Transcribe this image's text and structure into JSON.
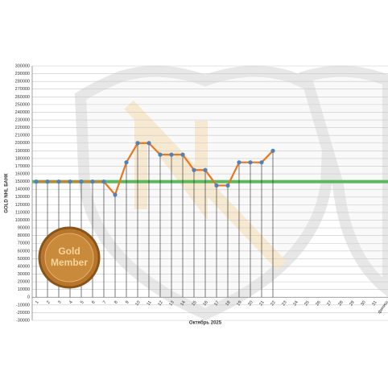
{
  "chart_data": {
    "type": "line",
    "y_label": "GOLD NHL БАНК",
    "x_label": "Октябрь 2025",
    "badge_text": [
      "Gold",
      "Member"
    ],
    "categories": [
      "1",
      "2",
      "3",
      "4",
      "5",
      "6",
      "7",
      "8",
      "9",
      "10",
      "11",
      "12",
      "13",
      "14",
      "15",
      "16",
      "17",
      "18",
      "19",
      "20",
      "21",
      "22",
      "23",
      "24",
      "25",
      "26",
      "27",
      "28",
      "29",
      "30",
      "31",
      "финиш"
    ],
    "series": [
      {
        "name": "GOLD NHL БАНК",
        "color": "#e8761e",
        "marker_color": "#4f81bd",
        "values": [
          150000,
          150000,
          150000,
          150000,
          150000,
          150000,
          150000,
          133000,
          175000,
          200000,
          200000,
          185000,
          185000,
          185000,
          165000,
          165000,
          145000,
          145000,
          175000,
          175000,
          175000,
          190000,
          null,
          null,
          null,
          null,
          null,
          null,
          null,
          null,
          null,
          null
        ]
      }
    ],
    "reference_line": {
      "value": 150000,
      "color": "#5cb85c"
    },
    "ylim": [
      -30000,
      300000
    ],
    "yticks": [
      -30000,
      -20000,
      -10000,
      0,
      10000,
      20000,
      30000,
      40000,
      50000,
      60000,
      70000,
      80000,
      90000,
      100000,
      110000,
      120000,
      130000,
      140000,
      150000,
      160000,
      170000,
      180000,
      190000,
      200000,
      210000,
      220000,
      230000,
      240000,
      250000,
      260000,
      270000,
      280000,
      290000,
      300000
    ],
    "grid": true
  }
}
